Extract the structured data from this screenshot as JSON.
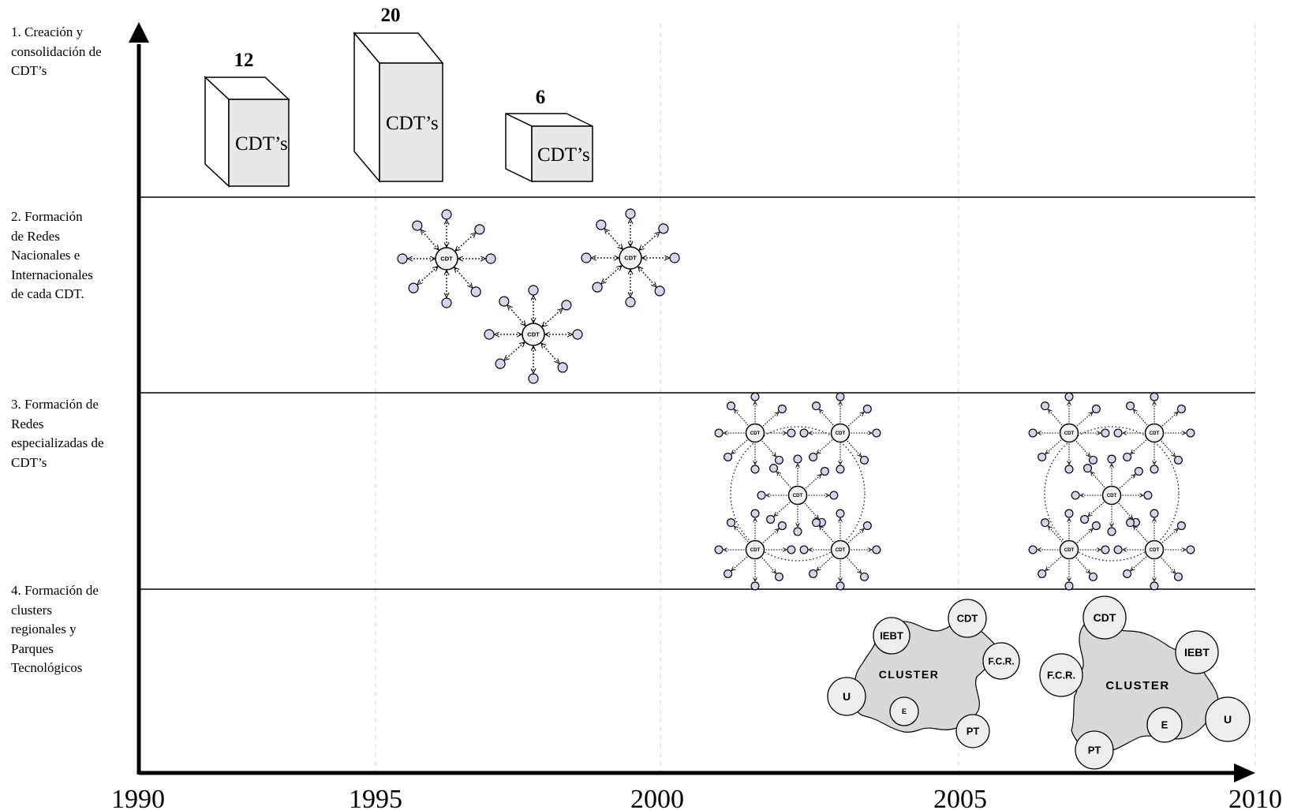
{
  "rows": [
    {
      "lines": [
        "1. Creación y",
        "consolidación de",
        "CDT’s"
      ]
    },
    {
      "lines": [
        "2. Formación",
        "de Redes",
        "Nacionales e",
        "Internacionales",
        "de cada CDT."
      ]
    },
    {
      "lines": [
        "3. Formación de",
        "Redes",
        "especializadas de",
        "CDT’s"
      ]
    },
    {
      "lines": [
        "4. Formación de",
        "clusters",
        "regionales y",
        "Parques",
        "Tecnológicos"
      ]
    }
  ],
  "x_axis": {
    "ticks": [
      "1990",
      "1995",
      "2000",
      "2005",
      "2010"
    ]
  },
  "cdt_boxes": [
    {
      "count": "12",
      "label": "CDT’s"
    },
    {
      "count": "20",
      "label": "CDT’s"
    },
    {
      "count": "6",
      "label": "CDT’s"
    }
  ],
  "network_hub_label": "CDT",
  "clusters": [
    {
      "title": "CLUSTER",
      "nodes": [
        "IEBT",
        "CDT",
        "F.C.R.",
        "U",
        "E",
        "PT"
      ]
    },
    {
      "title": "CLUSTER",
      "nodes": [
        "CDT",
        "IEBT",
        "F.C.R.",
        "U",
        "E",
        "PT"
      ]
    }
  ],
  "colors": {
    "box_front": "#e8e8e8",
    "node_fill": "#d6d4f2",
    "cluster_fill": "#d9d9d9",
    "bubble_fill": "#eeeeee"
  }
}
